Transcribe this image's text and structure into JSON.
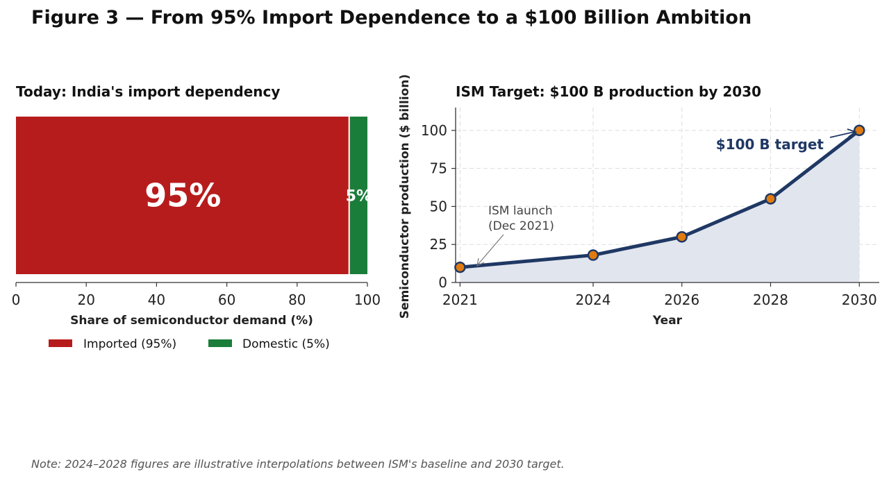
{
  "figure": {
    "title": "Figure 3 — From 95% Import Dependence to a $100 Billion Ambition",
    "note": "Note: 2024–2028 figures are illustrative interpolations between ISM's baseline and 2030 target."
  },
  "chart_data": [
    {
      "type": "bar",
      "orientation": "horizontal-stacked",
      "title": "Today: India's import dependency",
      "xlabel": "Share of semiconductor demand (%)",
      "xlim": [
        0,
        100
      ],
      "xticks": [
        "0",
        "20",
        "40",
        "60",
        "80",
        "100"
      ],
      "series": [
        {
          "name": "Imported (95%)",
          "value": 95,
          "label": "95%",
          "color": "#b71c1c"
        },
        {
          "name": "Domestic (5%)",
          "value": 5,
          "label": "5%",
          "color": "#1b7d3a"
        }
      ],
      "legend": "bottom"
    },
    {
      "type": "line",
      "title": "ISM Target: $100 B production by 2030",
      "xlabel": "Year",
      "ylabel": "Semiconductor production ($ billion)",
      "x": [
        2021,
        2024,
        2026,
        2028,
        2030
      ],
      "y": [
        10,
        18,
        30,
        55,
        100
      ],
      "xlim": [
        2020.9,
        2030.45
      ],
      "ylim": [
        0,
        115
      ],
      "xticks": [
        "2021",
        "2024",
        "2026",
        "2028",
        "2030"
      ],
      "yticks": [
        0,
        25,
        50,
        75,
        100
      ],
      "grid": true,
      "line_color": "#1f3864",
      "marker_color": "#e07b10",
      "fill_color": "#e1e5ee",
      "annotations": [
        {
          "text": "$100 B target",
          "x": 2030,
          "y": 100
        },
        {
          "text_line1": "ISM launch",
          "text_line2": "(Dec 2021)",
          "x": 2021,
          "y": 10
        }
      ]
    }
  ]
}
